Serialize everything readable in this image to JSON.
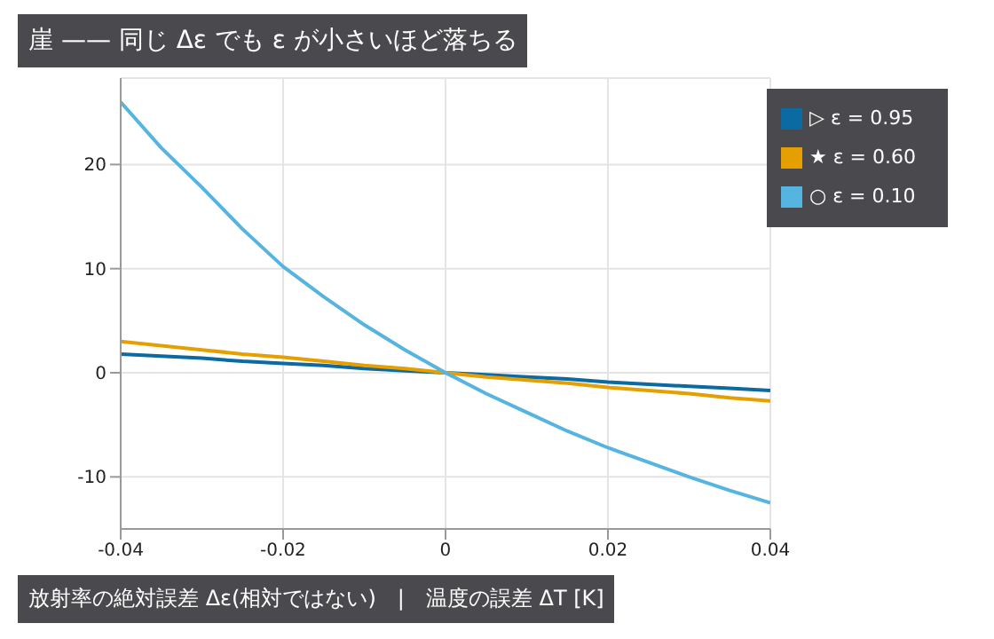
{
  "chart_data": {
    "type": "line",
    "title": "崖 —— 同じ Δε でも ε が小さいほど落ちる",
    "xlabel": "放射率の絶対誤差 Δε(相対ではない)　|　温度の誤差 ΔT [K]",
    "x": [
      -0.04,
      -0.035,
      -0.03,
      -0.025,
      -0.02,
      -0.015,
      -0.01,
      -0.005,
      0,
      0.005,
      0.01,
      0.015,
      0.02,
      0.025,
      0.03,
      0.035,
      0.04
    ],
    "series": [
      {
        "name": "▷ ε = 0.95",
        "color": "#0a6aa1",
        "values": [
          1.8,
          1.6,
          1.4,
          1.1,
          0.9,
          0.7,
          0.4,
          0.2,
          0,
          -0.2,
          -0.4,
          -0.6,
          -0.9,
          -1.1,
          -1.3,
          -1.5,
          -1.7
        ]
      },
      {
        "name": "★ ε = 0.60",
        "color": "#e69f00",
        "values": [
          3.0,
          2.6,
          2.2,
          1.8,
          1.5,
          1.1,
          0.7,
          0.4,
          0,
          -0.4,
          -0.7,
          -1.0,
          -1.4,
          -1.7,
          -2.0,
          -2.4,
          -2.7
        ]
      },
      {
        "name": "○ ε = 0.10",
        "color": "#56b4e0",
        "values": [
          26,
          21.6,
          17.8,
          13.8,
          10.2,
          7.3,
          4.6,
          2.2,
          0,
          -2.0,
          -3.8,
          -5.6,
          -7.2,
          -8.6,
          -10.0,
          -11.3,
          -12.5
        ]
      }
    ],
    "xlim": [
      -0.04,
      0.04
    ],
    "xticks": [
      -0.04,
      -0.02,
      0,
      0.02,
      0.04
    ],
    "ylim": [
      -15,
      28.3
    ],
    "yticks": [
      -10,
      0,
      10,
      20
    ],
    "grid": true,
    "legend": "top right",
    "marker": "none",
    "line_style": "solid"
  }
}
